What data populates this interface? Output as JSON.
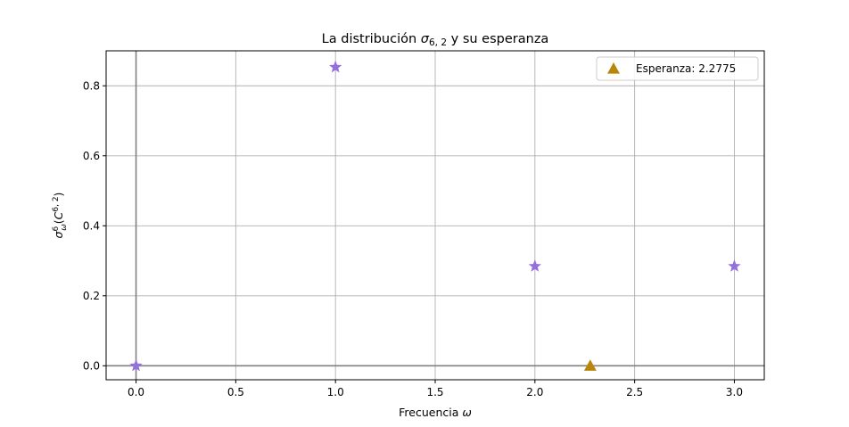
{
  "chart_data": {
    "type": "scatter",
    "title": "La distribución σ6, 2 y su esperanza",
    "xlabel": "Frecuencia ω",
    "ylabel": "σ6ω(C6, 2)",
    "xlim": [
      -0.15,
      3.15
    ],
    "ylim": [
      -0.04,
      0.9
    ],
    "xticks": [
      "0.0",
      "0.5",
      "1.0",
      "1.5",
      "2.0",
      "2.5",
      "3.0"
    ],
    "yticks": [
      "0.0",
      "0.2",
      "0.4",
      "0.6",
      "0.8"
    ],
    "grid": true,
    "legend_position": "top-right",
    "series": [
      {
        "marker": "star",
        "color": "#9370DB",
        "x": [
          0,
          1,
          2,
          3
        ],
        "y": [
          0.0,
          0.8533,
          0.2844,
          0.2844
        ]
      },
      {
        "name": "Esperanza: 2.2775",
        "marker": "triangle",
        "color": "#B8860B",
        "x": [
          2.2775
        ],
        "y": [
          0.0
        ]
      }
    ],
    "reference_lines": {
      "x": 0,
      "y": 0,
      "color": "#808080"
    }
  }
}
